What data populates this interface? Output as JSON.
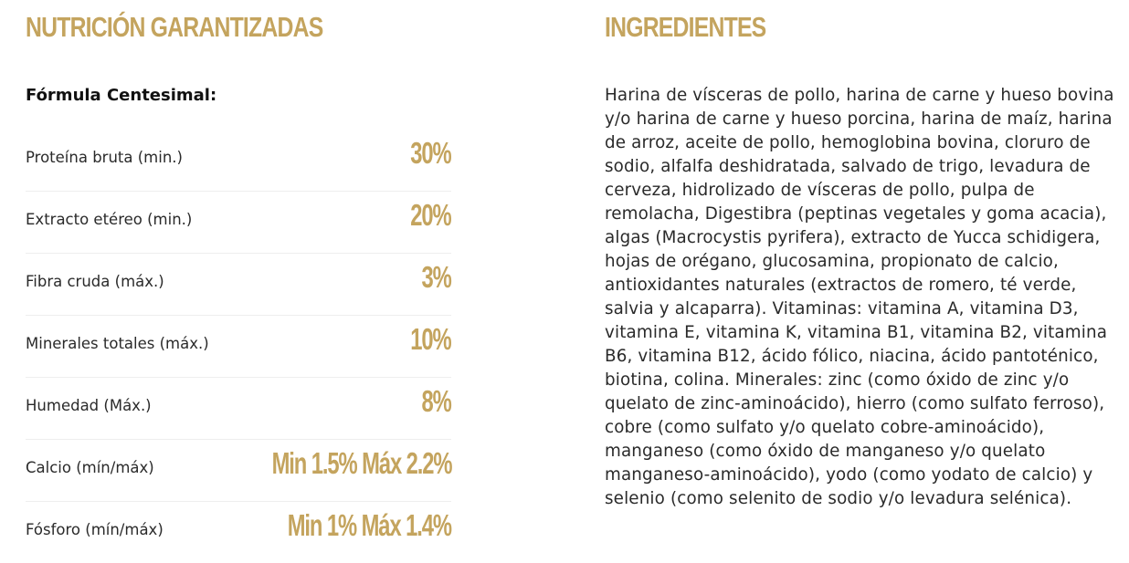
{
  "nutrition": {
    "title": "NUTRICIÓN GARANTIZADAS",
    "subtitle": "Fórmula Centesimal:",
    "rows": [
      {
        "label": "Proteína bruta (min.)",
        "value": "30%"
      },
      {
        "label": "Extracto etéreo (min.)",
        "value": "20%"
      },
      {
        "label": "Fibra cruda (máx.)",
        "value": "3%"
      },
      {
        "label": "Minerales totales (máx.)",
        "value": "10%"
      },
      {
        "label": "Humedad (Máx.)",
        "value": "8%"
      },
      {
        "label": "Calcio (mín/máx)",
        "value": "Min 1.5% Máx 2.2%"
      },
      {
        "label": "Fósforo (mín/máx)",
        "value": "Min 1% Máx 1.4%"
      }
    ]
  },
  "ingredients": {
    "title": "INGREDIENTES",
    "text": "Harina de vísceras de pollo, harina de carne y hueso bovina y/o harina de carne y hueso porcina, harina de maíz, harina de arroz, aceite de pollo, hemoglobina bovina, cloruro de sodio, alfalfa deshidratada, salvado de trigo, levadura de cerveza, hidrolizado de vísceras de pollo, pulpa de remolacha, Digestibra (peptinas vegetales y goma acacia), algas (Macrocystis pyrifera), extracto de Yucca schidigera, hojas de orégano, glucosamina, propionato de calcio, antioxidantes naturales (extractos de romero, té verde, salvia y alcaparra). Vitaminas: vitamina A, vitamina D3, vitamina E, vitamina K, vitamina B1, vitamina B2, vitamina B6, vitamina B12, ácido fólico, niacina, ácido pantoténico, biotina, colina. Minerales: zinc (como óxido de zinc y/o quelato de zinc-aminoácido), hierro (como sulfato ferroso), cobre (como sulfato y/o quelato cobre-aminoácido), manganeso (como óxido de manganeso y/o quelato manganeso-aminoácido), yodo (como yodato de calcio) y selenio (como selenito de sodio y/o levadura selénica)."
  },
  "colors": {
    "accent": "#c4a45e",
    "text": "#2a2a2a",
    "divider": "#eeeeee"
  }
}
